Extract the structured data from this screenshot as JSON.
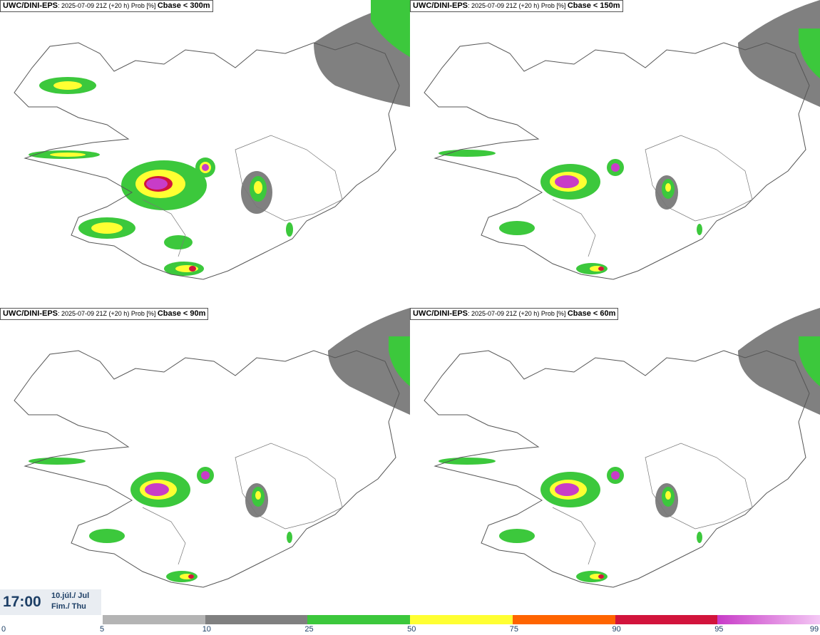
{
  "panels": [
    {
      "model": "UWC/DINI-EPS",
      "run": ": 2025-07-09 21Z (+20 h) Prob [%]",
      "variable": "Cbase < 300m"
    },
    {
      "model": "UWC/DINI-EPS",
      "run": ": 2025-07-09 21Z (+20 h) Prob [%]",
      "variable": "Cbase < 150m"
    },
    {
      "model": "UWC/DINI-EPS",
      "run": ": 2025-07-09 21Z (+20 h) Prob [%]",
      "variable": "Cbase < 90m"
    },
    {
      "model": "UWC/DINI-EPS",
      "run": ": 2025-07-09 21Z (+20 h) Prob [%]",
      "variable": "Cbase < 60m"
    }
  ],
  "valid_time": {
    "time": "17:00",
    "date": "10.júl./ Jul",
    "weekday": "Fim./ Thu"
  },
  "legend": {
    "labels": [
      "0",
      "5",
      "10",
      "25",
      "50",
      "75",
      "90",
      "95",
      "99"
    ],
    "colors": [
      "#b4b4b4",
      "#808080",
      "#3cc83c",
      "#ffff32",
      "#ff6400",
      "#d2143c",
      "#c83cc8"
    ]
  }
}
